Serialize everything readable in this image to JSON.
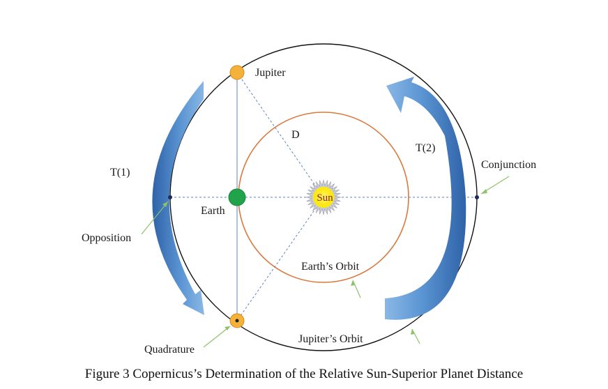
{
  "labels": {
    "jupiter": "Jupiter",
    "distance": "D",
    "t2": "T(2)",
    "conjunction": "Conjunction",
    "t1": "T(1)",
    "sun": "Sun",
    "earth": "Earth",
    "opposition": "Opposition",
    "earth_orbit": "Earth’s Orbit",
    "jupiter_orbit": "Jupiter’s Orbit",
    "quadrature": "Quadrature"
  },
  "caption": "Figure 3 Copernicus’s Determination of the Relative Sun-Superior Planet Distance",
  "colors": {
    "orbit_outer": "#111111",
    "orbit_inner": "#d9793f",
    "jupiter": "#f4b23a",
    "earth": "#21a34b",
    "sun_rays": "#c9cbd3",
    "sun_core": "#fff200",
    "arrows": "#3f74b8",
    "pointers": "#8dc26b",
    "guide_lines": "#5b82c4"
  }
}
